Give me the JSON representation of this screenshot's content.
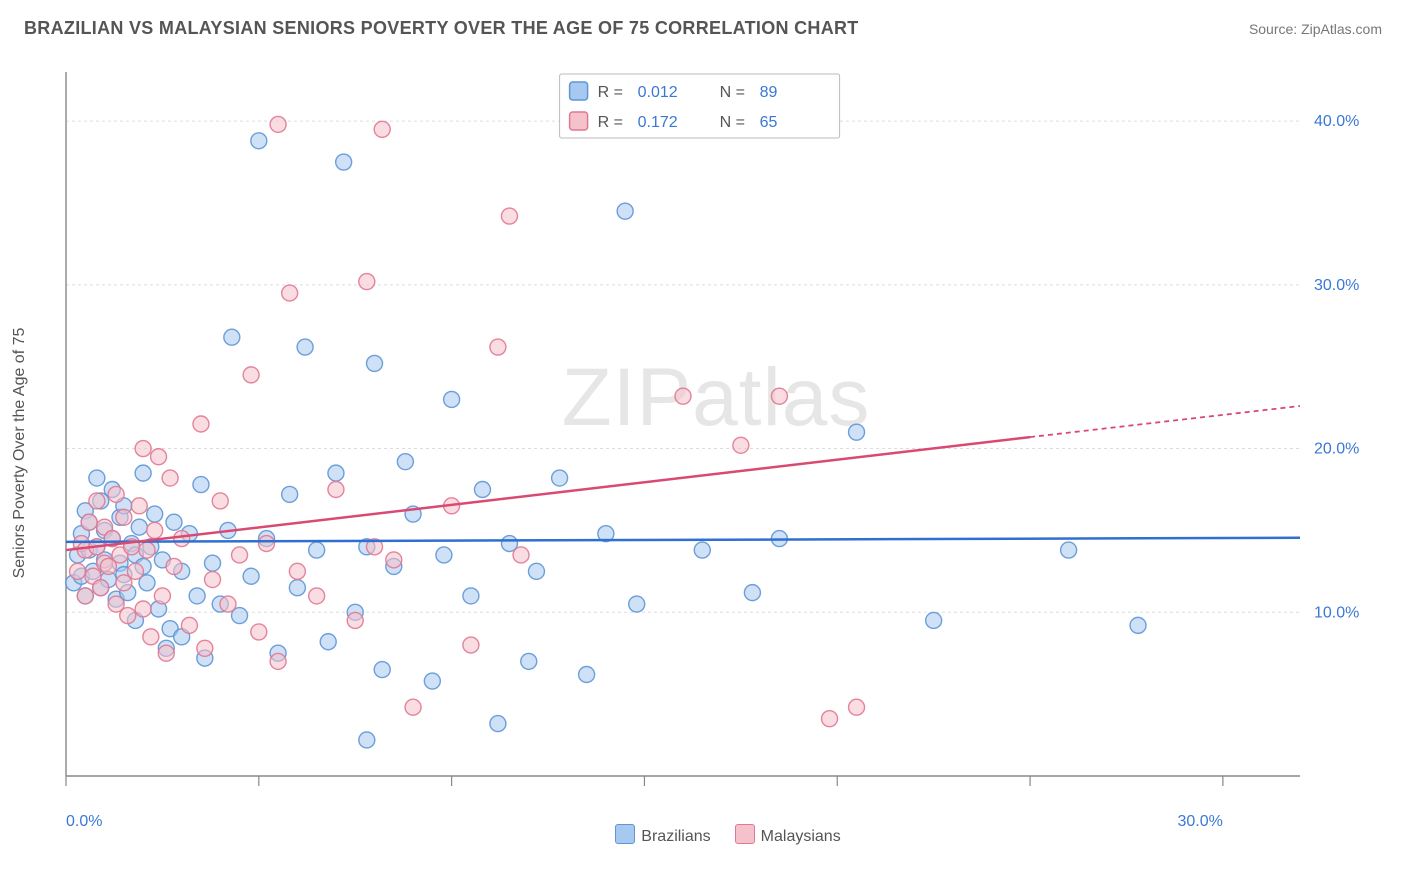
{
  "title": "BRAZILIAN VS MALAYSIAN SENIORS POVERTY OVER THE AGE OF 75 CORRELATION CHART",
  "source_label": "Source: ZipAtlas.com",
  "ylabel": "Seniors Poverty Over the Age of 75",
  "watermark": "ZIPatlas",
  "chart": {
    "type": "scatter",
    "background_color": "#ffffff",
    "grid_color": "#dddddd",
    "grid_dash": "3,3",
    "axis_color": "#888888",
    "tick_color": "#888888",
    "tick_label_color": "#3a78d6",
    "xlim": [
      0,
      32
    ],
    "ylim": [
      0,
      43
    ],
    "xticks": [
      0,
      5,
      10,
      15,
      20,
      25,
      30
    ],
    "xtick_labels": {
      "0": "0.0%",
      "30": "30.0%"
    },
    "yticks": [
      10,
      20,
      30,
      40
    ],
    "ytick_labels": {
      "10": "10.0%",
      "20": "20.0%",
      "30": "30.0%",
      "40": "40.0%"
    },
    "marker_radius": 8,
    "marker_opacity": 0.55,
    "marker_stroke_opacity": 0.9,
    "trend_line_width": 2.5,
    "trend_dash_extension": "5,4"
  },
  "series": [
    {
      "name": "Brazilians",
      "color_fill": "#a7c8ef",
      "color_stroke": "#5e96d6",
      "trend_color": "#2f6fd0",
      "R": "0.012",
      "N": "89",
      "trend": {
        "x1": 0,
        "y1": 14.3,
        "x2": 32,
        "y2": 14.55
      },
      "points": [
        [
          0.2,
          11.8
        ],
        [
          0.3,
          13.5
        ],
        [
          0.4,
          12.2
        ],
        [
          0.4,
          14.8
        ],
        [
          0.5,
          16.2
        ],
        [
          0.5,
          11.0
        ],
        [
          0.6,
          13.8
        ],
        [
          0.6,
          15.5
        ],
        [
          0.7,
          12.5
        ],
        [
          0.8,
          14.0
        ],
        [
          0.8,
          18.2
        ],
        [
          0.9,
          11.5
        ],
        [
          0.9,
          16.8
        ],
        [
          1.0,
          13.2
        ],
        [
          1.0,
          15.0
        ],
        [
          1.1,
          12.0
        ],
        [
          1.2,
          14.5
        ],
        [
          1.2,
          17.5
        ],
        [
          1.3,
          10.8
        ],
        [
          1.4,
          13.0
        ],
        [
          1.4,
          15.8
        ],
        [
          1.5,
          12.3
        ],
        [
          1.5,
          16.5
        ],
        [
          1.6,
          11.2
        ],
        [
          1.7,
          14.2
        ],
        [
          1.8,
          13.5
        ],
        [
          1.8,
          9.5
        ],
        [
          1.9,
          15.2
        ],
        [
          2.0,
          12.8
        ],
        [
          2.0,
          18.5
        ],
        [
          2.1,
          11.8
        ],
        [
          2.2,
          14.0
        ],
        [
          2.3,
          16.0
        ],
        [
          2.4,
          10.2
        ],
        [
          2.5,
          13.2
        ],
        [
          2.6,
          7.8
        ],
        [
          2.7,
          9.0
        ],
        [
          2.8,
          15.5
        ],
        [
          3.0,
          12.5
        ],
        [
          3.0,
          8.5
        ],
        [
          3.2,
          14.8
        ],
        [
          3.4,
          11.0
        ],
        [
          3.5,
          17.8
        ],
        [
          3.6,
          7.2
        ],
        [
          3.8,
          13.0
        ],
        [
          4.0,
          10.5
        ],
        [
          4.2,
          15.0
        ],
        [
          4.3,
          26.8
        ],
        [
          4.5,
          9.8
        ],
        [
          4.8,
          12.2
        ],
        [
          5.0,
          38.8
        ],
        [
          5.2,
          14.5
        ],
        [
          5.5,
          7.5
        ],
        [
          5.8,
          17.2
        ],
        [
          6.0,
          11.5
        ],
        [
          6.2,
          26.2
        ],
        [
          6.5,
          13.8
        ],
        [
          6.8,
          8.2
        ],
        [
          7.0,
          18.5
        ],
        [
          7.2,
          37.5
        ],
        [
          7.5,
          10.0
        ],
        [
          7.8,
          14.0
        ],
        [
          8.0,
          25.2
        ],
        [
          8.2,
          6.5
        ],
        [
          8.5,
          12.8
        ],
        [
          8.8,
          19.2
        ],
        [
          9.0,
          16.0
        ],
        [
          9.5,
          5.8
        ],
        [
          9.8,
          13.5
        ],
        [
          10.0,
          23.0
        ],
        [
          10.5,
          11.0
        ],
        [
          10.8,
          17.5
        ],
        [
          11.2,
          3.2
        ],
        [
          11.5,
          14.2
        ],
        [
          12.0,
          7.0
        ],
        [
          12.2,
          12.5
        ],
        [
          12.8,
          18.2
        ],
        [
          13.5,
          6.2
        ],
        [
          14.0,
          14.8
        ],
        [
          14.5,
          34.5
        ],
        [
          14.8,
          10.5
        ],
        [
          16.5,
          13.8
        ],
        [
          17.8,
          11.2
        ],
        [
          18.5,
          14.5
        ],
        [
          20.5,
          21.0
        ],
        [
          22.5,
          9.5
        ],
        [
          26.0,
          13.8
        ],
        [
          27.8,
          9.2
        ],
        [
          7.8,
          2.2
        ]
      ]
    },
    {
      "name": "Malaysians",
      "color_fill": "#f5c1ca",
      "color_stroke": "#e17891",
      "trend_color": "#d94a73",
      "R": "0.172",
      "N": "65",
      "trend": {
        "x1": 0,
        "y1": 13.8,
        "x2": 25,
        "y2": 20.7
      },
      "trend_ext": {
        "x1": 25,
        "y1": 20.7,
        "x2": 32,
        "y2": 22.6
      },
      "points": [
        [
          0.3,
          12.5
        ],
        [
          0.4,
          14.2
        ],
        [
          0.5,
          11.0
        ],
        [
          0.5,
          13.8
        ],
        [
          0.6,
          15.5
        ],
        [
          0.7,
          12.2
        ],
        [
          0.8,
          14.0
        ],
        [
          0.8,
          16.8
        ],
        [
          0.9,
          11.5
        ],
        [
          1.0,
          13.0
        ],
        [
          1.0,
          15.2
        ],
        [
          1.1,
          12.8
        ],
        [
          1.2,
          14.5
        ],
        [
          1.3,
          10.5
        ],
        [
          1.3,
          17.2
        ],
        [
          1.4,
          13.5
        ],
        [
          1.5,
          11.8
        ],
        [
          1.5,
          15.8
        ],
        [
          1.6,
          9.8
        ],
        [
          1.7,
          14.0
        ],
        [
          1.8,
          12.5
        ],
        [
          1.9,
          16.5
        ],
        [
          2.0,
          10.2
        ],
        [
          2.0,
          20.0
        ],
        [
          2.1,
          13.8
        ],
        [
          2.2,
          8.5
        ],
        [
          2.3,
          15.0
        ],
        [
          2.4,
          19.5
        ],
        [
          2.5,
          11.0
        ],
        [
          2.6,
          7.5
        ],
        [
          2.7,
          18.2
        ],
        [
          2.8,
          12.8
        ],
        [
          3.0,
          14.5
        ],
        [
          3.2,
          9.2
        ],
        [
          3.5,
          21.5
        ],
        [
          3.6,
          7.8
        ],
        [
          3.8,
          12.0
        ],
        [
          4.0,
          16.8
        ],
        [
          4.2,
          10.5
        ],
        [
          4.5,
          13.5
        ],
        [
          4.8,
          24.5
        ],
        [
          5.0,
          8.8
        ],
        [
          5.2,
          14.2
        ],
        [
          5.5,
          7.0
        ],
        [
          5.8,
          29.5
        ],
        [
          5.5,
          39.8
        ],
        [
          6.0,
          12.5
        ],
        [
          6.5,
          11.0
        ],
        [
          7.0,
          17.5
        ],
        [
          7.5,
          9.5
        ],
        [
          7.8,
          30.2
        ],
        [
          8.0,
          14.0
        ],
        [
          8.2,
          39.5
        ],
        [
          8.5,
          13.2
        ],
        [
          9.0,
          4.2
        ],
        [
          10.0,
          16.5
        ],
        [
          10.5,
          8.0
        ],
        [
          11.2,
          26.2
        ],
        [
          11.5,
          34.2
        ],
        [
          11.8,
          13.5
        ],
        [
          16.0,
          23.2
        ],
        [
          17.5,
          20.2
        ],
        [
          18.5,
          23.2
        ],
        [
          19.8,
          3.5
        ],
        [
          20.5,
          4.2
        ]
      ]
    }
  ],
  "stats_legend": {
    "rows": [
      {
        "swatch_fill": "#a7c8ef",
        "swatch_stroke": "#5e96d6",
        "R_label": "R =",
        "R_val": "0.012",
        "N_label": "N =",
        "N_val": "89"
      },
      {
        "swatch_fill": "#f5c1ca",
        "swatch_stroke": "#e17891",
        "R_label": "R =",
        "R_val": "0.172",
        "N_label": "N =",
        "65": "65",
        "N_val": "65"
      }
    ]
  },
  "bottom_legend": [
    {
      "fill": "#a7c8ef",
      "stroke": "#5e96d6",
      "label": "Brazilians"
    },
    {
      "fill": "#f5c1ca",
      "stroke": "#e17891",
      "label": "Malaysians"
    }
  ]
}
